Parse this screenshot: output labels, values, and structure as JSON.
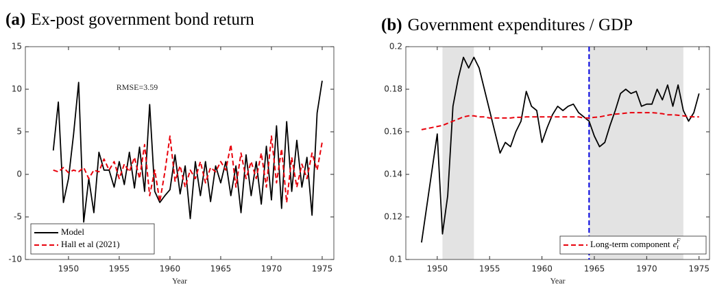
{
  "chart_data": [
    {
      "type": "line",
      "title_tag": "(a)",
      "title": "Ex-post government bond return",
      "x_label": "Year",
      "annotation": "RMSE=3.59",
      "xlim": [
        1945.75,
        1976.15
      ],
      "xticks": [
        1950,
        1955,
        1960,
        1965,
        1970,
        1975
      ],
      "ylim": [
        -10,
        15
      ],
      "yticks": [
        -10,
        -5,
        0,
        5,
        10,
        15
      ],
      "grid": false,
      "legend": "lower left",
      "x": [
        1948.5,
        1949,
        1949.5,
        1950,
        1950.5,
        1951,
        1951.5,
        1952,
        1952.5,
        1953,
        1953.5,
        1954,
        1954.5,
        1955,
        1955.5,
        1956,
        1956.5,
        1957,
        1957.5,
        1958,
        1958.5,
        1959,
        1959.5,
        1960,
        1960.5,
        1961,
        1961.5,
        1962,
        1962.5,
        1963,
        1963.5,
        1964,
        1964.5,
        1965,
        1965.5,
        1966,
        1966.5,
        1967,
        1967.5,
        1968,
        1968.5,
        1969,
        1969.5,
        1970,
        1970.5,
        1971,
        1971.5,
        1972,
        1972.5,
        1973,
        1973.5,
        1974,
        1974.5,
        1975
      ],
      "series": [
        {
          "name": "Model",
          "color": "#000000",
          "dash": false,
          "values": [
            2.8,
            8.5,
            -3.3,
            -0.5,
            4.7,
            10.8,
            -5.6,
            -0.5,
            -4.5,
            2.6,
            0.5,
            0.5,
            -1.5,
            1.5,
            -1.2,
            2.6,
            -1.6,
            3.2,
            -2,
            8.2,
            -2,
            -3.3,
            -2.5,
            -1.8,
            2.3,
            -2.3,
            1,
            -5.2,
            1.5,
            -2.5,
            1.5,
            -3.2,
            1,
            -1,
            1.5,
            -2.5,
            1,
            -4.5,
            2.3,
            -2.5,
            1.5,
            -3.5,
            3.3,
            -3,
            5.7,
            -4,
            6.2,
            -2,
            4,
            -1.5,
            2,
            -4.8,
            7.2,
            11
          ]
        },
        {
          "name": "Hall et al (2021)",
          "color": "#e8000b",
          "dash": true,
          "values": [
            0.5,
            0.3,
            0.8,
            0.2,
            0.5,
            0.3,
            0.8,
            -0.5,
            0.5,
            0.3,
            1.8,
            0.5,
            1.5,
            -0.5,
            1.2,
            0.3,
            2,
            -0.5,
            3.5,
            -2.5,
            0.5,
            -3.2,
            0.3,
            4.5,
            -0.8,
            1,
            -1.5,
            0.5,
            -0.5,
            1.5,
            -1,
            0.8,
            0.3,
            1.5,
            0.5,
            3.5,
            -1.5,
            2.5,
            -0.5,
            1.5,
            -0.5,
            2.5,
            -1.5,
            4.5,
            -1,
            3,
            -3.3,
            2,
            -1.5,
            1.2,
            -0.5,
            2.5,
            0.5,
            3.8
          ]
        }
      ]
    },
    {
      "type": "line",
      "title_tag": "(b)",
      "title": "Government expenditures / GDP",
      "x_label": "Year",
      "xlim": [
        1947,
        1976
      ],
      "xticks": [
        1950,
        1955,
        1960,
        1965,
        1970,
        1975
      ],
      "ylim": [
        0.1,
        0.2
      ],
      "yticks": [
        0.1,
        0.12,
        0.14,
        0.16,
        0.18,
        0.2
      ],
      "grid": false,
      "legend": "lower right",
      "shaded": [
        [
          1950.5,
          1953.5
        ],
        [
          1964.5,
          1973.5
        ]
      ],
      "shade_color": "#e3e3e3",
      "vline": 1964.5,
      "vline_color": "#0000e0",
      "x": [
        1948.5,
        1949,
        1949.5,
        1950,
        1950.5,
        1951,
        1951.5,
        1952,
        1952.5,
        1953,
        1953.5,
        1954,
        1954.5,
        1955,
        1955.5,
        1956,
        1956.5,
        1957,
        1957.5,
        1958,
        1958.5,
        1959,
        1959.5,
        1960,
        1960.5,
        1961,
        1961.5,
        1962,
        1962.5,
        1963,
        1963.5,
        1964,
        1964.5,
        1965,
        1965.5,
        1966,
        1966.5,
        1967,
        1967.5,
        1968,
        1968.5,
        1969,
        1969.5,
        1970,
        1970.5,
        1971,
        1971.5,
        1972,
        1972.5,
        1973,
        1973.5,
        1974,
        1974.5,
        1975
      ],
      "series": [
        {
          "color": "#000000",
          "dash": false,
          "values": [
            0.108,
            0.125,
            0.142,
            0.159,
            0.112,
            0.13,
            0.172,
            0.185,
            0.195,
            0.19,
            0.195,
            0.19,
            0.18,
            0.17,
            0.16,
            0.15,
            0.155,
            0.153,
            0.16,
            0.165,
            0.179,
            0.172,
            0.17,
            0.155,
            0.162,
            0.168,
            0.172,
            0.17,
            0.172,
            0.173,
            0.169,
            0.167,
            0.165,
            0.158,
            0.153,
            0.155,
            0.163,
            0.17,
            0.178,
            0.18,
            0.178,
            0.179,
            0.172,
            0.173,
            0.173,
            0.18,
            0.175,
            0.182,
            0.172,
            0.182,
            0.17,
            0.165,
            0.169,
            0.178
          ]
        },
        {
          "name": "Long-term component",
          "name_math": {
            "base": "e",
            "sub": "t",
            "sup": "F"
          },
          "color": "#e8000b",
          "dash": true,
          "values": [
            0.161,
            0.1615,
            0.162,
            0.1625,
            0.163,
            0.164,
            0.165,
            0.166,
            0.167,
            0.1675,
            0.1675,
            0.167,
            0.167,
            0.1665,
            0.1665,
            0.1665,
            0.1665,
            0.1665,
            0.1668,
            0.1668,
            0.167,
            0.167,
            0.167,
            0.167,
            0.167,
            0.167,
            0.167,
            0.167,
            0.167,
            0.167,
            0.167,
            0.1665,
            0.1665,
            0.1668,
            0.167,
            0.1675,
            0.168,
            0.1683,
            0.1685,
            0.1688,
            0.169,
            0.169,
            0.169,
            0.169,
            0.169,
            0.1688,
            0.1685,
            0.168,
            0.168,
            0.1678,
            0.1675,
            0.1672,
            0.167,
            0.167
          ]
        }
      ]
    }
  ]
}
